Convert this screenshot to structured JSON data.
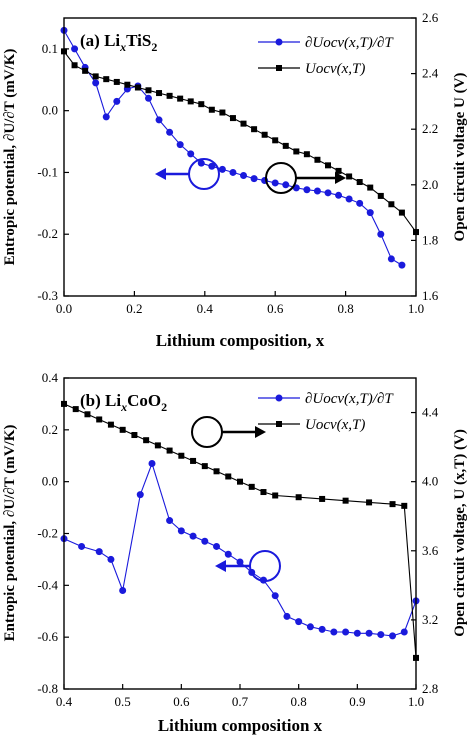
{
  "chart_data": [
    {
      "type": "line",
      "title_main": "(a) Li",
      "title_sub": "x",
      "title_tail": "TiS",
      "title_sub2": "2",
      "xlabel": "Lithium composition, x",
      "ylabel_left": "Entropic potential, ∂U/∂T (mV/K)",
      "ylabel_right": "Open circuit voltage U (V)",
      "xlim": [
        0.0,
        1.0
      ],
      "ylim_left": [
        -0.3,
        0.15
      ],
      "ylim_right": [
        1.6,
        2.6
      ],
      "x_ticks": [
        "0.0",
        "0.2",
        "0.4",
        "0.6",
        "0.8",
        "1.0"
      ],
      "y_left_ticks": [
        "-0.3",
        "-0.2",
        "-0.1",
        "0.0",
        "0.1"
      ],
      "y_right_ticks": [
        "1.6",
        "1.8",
        "2.0",
        "2.2",
        "2.4",
        "2.6"
      ],
      "legend_position": "top-right",
      "series": [
        {
          "name": "∂Uocv(x,T)/∂T",
          "axis": "left",
          "color": "#1a1adc",
          "marker": "circle",
          "x": [
            0.0,
            0.03,
            0.06,
            0.09,
            0.12,
            0.15,
            0.18,
            0.21,
            0.24,
            0.27,
            0.3,
            0.33,
            0.36,
            0.39,
            0.42,
            0.45,
            0.48,
            0.51,
            0.54,
            0.57,
            0.6,
            0.63,
            0.66,
            0.69,
            0.72,
            0.75,
            0.78,
            0.81,
            0.84,
            0.87,
            0.9,
            0.93,
            0.96
          ],
          "values": [
            0.13,
            0.1,
            0.07,
            0.045,
            -0.01,
            0.015,
            0.035,
            0.04,
            0.02,
            -0.015,
            -0.035,
            -0.055,
            -0.07,
            -0.085,
            -0.09,
            -0.095,
            -0.1,
            -0.105,
            -0.11,
            -0.113,
            -0.117,
            -0.12,
            -0.125,
            -0.128,
            -0.13,
            -0.133,
            -0.137,
            -0.143,
            -0.15,
            -0.165,
            -0.2,
            -0.24,
            -0.25
          ]
        },
        {
          "name": "Uocv(x,T)",
          "axis": "right",
          "color": "#000000",
          "marker": "square",
          "x": [
            0.0,
            0.03,
            0.06,
            0.09,
            0.12,
            0.15,
            0.18,
            0.21,
            0.24,
            0.27,
            0.3,
            0.33,
            0.36,
            0.39,
            0.42,
            0.45,
            0.48,
            0.51,
            0.54,
            0.57,
            0.6,
            0.63,
            0.66,
            0.69,
            0.72,
            0.75,
            0.78,
            0.81,
            0.84,
            0.87,
            0.9,
            0.93,
            0.96,
            1.0
          ],
          "values": [
            2.48,
            2.43,
            2.41,
            2.39,
            2.38,
            2.37,
            2.36,
            2.35,
            2.34,
            2.33,
            2.32,
            2.31,
            2.3,
            2.29,
            2.27,
            2.26,
            2.24,
            2.22,
            2.2,
            2.18,
            2.16,
            2.14,
            2.12,
            2.11,
            2.09,
            2.07,
            2.05,
            2.03,
            2.01,
            1.99,
            1.96,
            1.93,
            1.9,
            1.83
          ]
        }
      ]
    },
    {
      "type": "line",
      "title_main": "(b) Li",
      "title_sub": "x",
      "title_tail": "CoO",
      "title_sub2": "2",
      "xlabel": "Lithium composition x",
      "ylabel_left": "Entropic potential, ∂U/∂T (mV/K)",
      "ylabel_right": "Open circuit voltage, U (x,T) (V)",
      "xlim": [
        0.4,
        1.0
      ],
      "ylim_left": [
        -0.8,
        0.4
      ],
      "ylim_right": [
        2.8,
        4.6
      ],
      "x_ticks": [
        "0.4",
        "0.5",
        "0.6",
        "0.7",
        "0.8",
        "0.9",
        "1.0"
      ],
      "y_left_ticks": [
        "-0.8",
        "-0.6",
        "-0.4",
        "-0.2",
        "0.0",
        "0.2",
        "0.4"
      ],
      "y_right_ticks": [
        "2.8",
        "3.2",
        "3.6",
        "4.0",
        "4.4"
      ],
      "legend_position": "top-right",
      "series": [
        {
          "name": "∂Uocv(x,T)/∂T",
          "axis": "left",
          "color": "#1a1adc",
          "marker": "circle",
          "x": [
            0.4,
            0.43,
            0.46,
            0.48,
            0.5,
            0.53,
            0.55,
            0.58,
            0.6,
            0.62,
            0.64,
            0.66,
            0.68,
            0.7,
            0.72,
            0.74,
            0.76,
            0.78,
            0.8,
            0.82,
            0.84,
            0.86,
            0.88,
            0.9,
            0.92,
            0.94,
            0.96,
            0.98,
            1.0
          ],
          "values": [
            -0.22,
            -0.25,
            -0.27,
            -0.3,
            -0.42,
            -0.05,
            0.07,
            -0.15,
            -0.19,
            -0.21,
            -0.23,
            -0.25,
            -0.28,
            -0.31,
            -0.35,
            -0.38,
            -0.44,
            -0.52,
            -0.54,
            -0.56,
            -0.57,
            -0.58,
            -0.58,
            -0.585,
            -0.585,
            -0.59,
            -0.595,
            -0.58,
            -0.46
          ]
        },
        {
          "name": "Uocv(x,T)",
          "axis": "right",
          "color": "#000000",
          "marker": "square",
          "x": [
            0.4,
            0.42,
            0.44,
            0.46,
            0.48,
            0.5,
            0.52,
            0.54,
            0.56,
            0.58,
            0.6,
            0.62,
            0.64,
            0.66,
            0.68,
            0.7,
            0.72,
            0.74,
            0.76,
            0.8,
            0.84,
            0.88,
            0.92,
            0.96,
            0.98,
            1.0
          ],
          "values": [
            4.45,
            4.42,
            4.39,
            4.36,
            4.33,
            4.3,
            4.27,
            4.24,
            4.21,
            4.18,
            4.15,
            4.12,
            4.09,
            4.06,
            4.03,
            4.0,
            3.97,
            3.94,
            3.92,
            3.91,
            3.9,
            3.89,
            3.88,
            3.87,
            3.86,
            2.98
          ]
        }
      ]
    }
  ]
}
